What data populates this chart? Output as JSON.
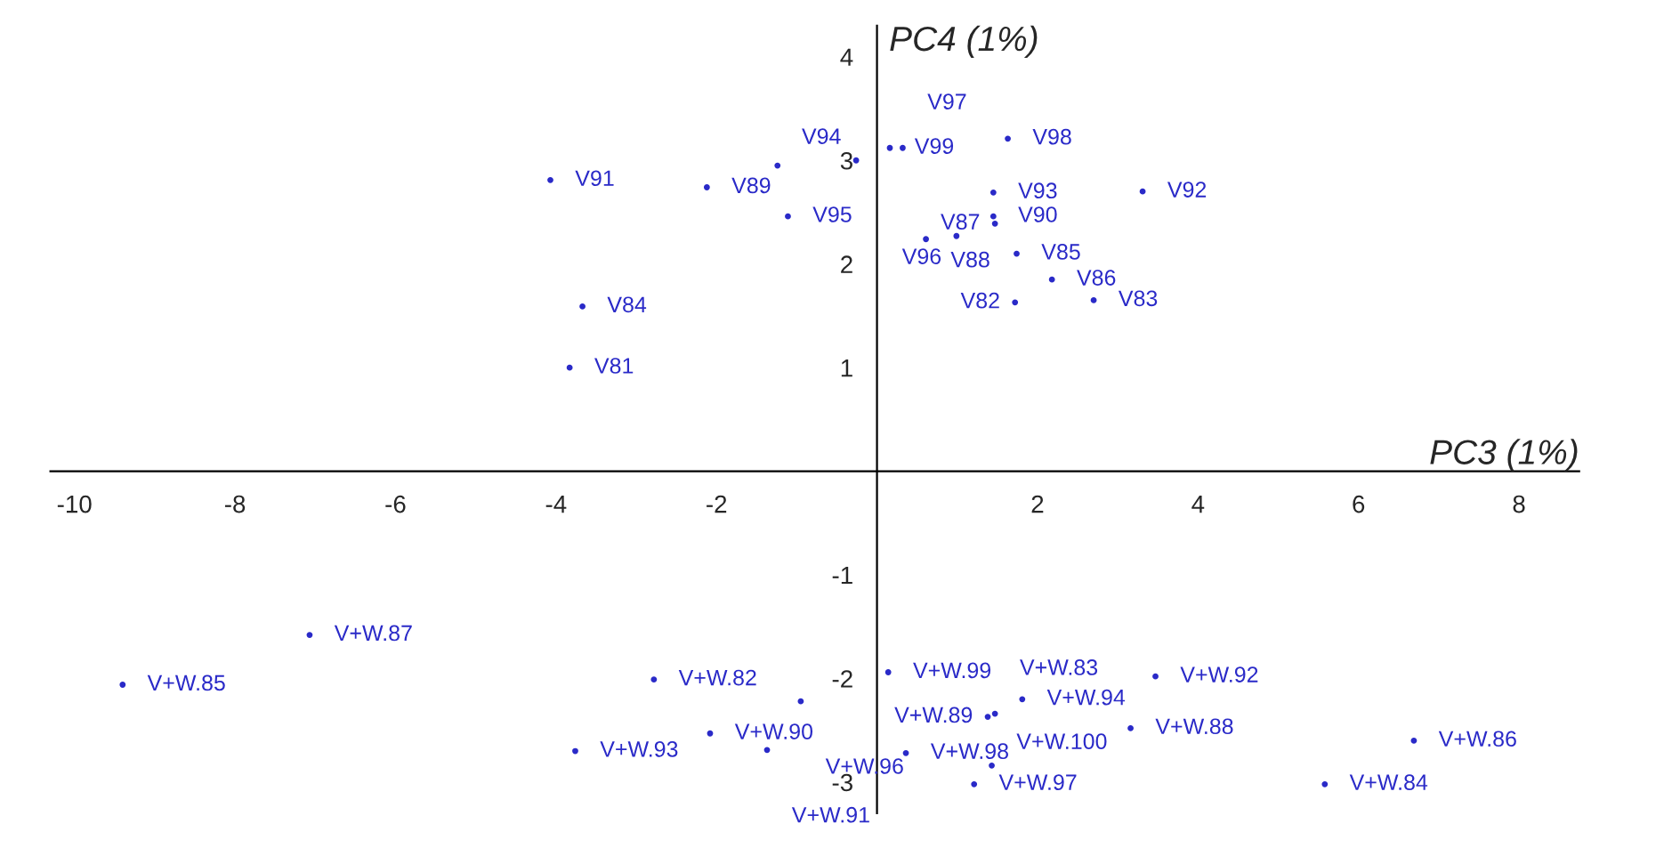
{
  "chart_data": {
    "type": "scatter",
    "xlabel": "PC3 (1%)",
    "ylabel": "PC4 (1%)",
    "xlim": [
      -10.3,
      8.75
    ],
    "ylim": [
      -3.3,
      4.3
    ],
    "xticks": [
      -10,
      -8,
      -6,
      -4,
      -2,
      2,
      4,
      6,
      8
    ],
    "yticks": [
      -3,
      -2,
      -1,
      1,
      2,
      3,
      4
    ],
    "grid": false,
    "legend": false,
    "marker": "circle",
    "series": [
      {
        "color": "#2a2ac8",
        "x": [
          -4.07,
          -2.12,
          -1.11,
          -1.24,
          -0.26,
          0.16,
          0.32,
          1.63,
          1.45,
          3.31,
          1.45,
          1.47,
          0.61,
          0.99,
          1.74,
          2.18,
          1.72,
          2.7,
          -3.67,
          -3.83,
          -7.07,
          -9.4,
          -2.78,
          -3.76,
          -2.08,
          -1.37,
          -0.95,
          0.14,
          0.36,
          1.21,
          1.43,
          1.81,
          1.38,
          1.47,
          3.16,
          3.47,
          6.69,
          5.58
        ],
        "values": [
          2.81,
          2.74,
          2.46,
          2.95,
          3.0,
          3.12,
          3.12,
          3.21,
          2.69,
          2.7,
          2.46,
          2.39,
          2.24,
          2.27,
          2.1,
          1.85,
          1.63,
          1.65,
          1.59,
          1.0,
          -1.58,
          -2.06,
          -2.01,
          -2.7,
          -2.53,
          -2.69,
          -2.22,
          -1.94,
          -2.72,
          -3.02,
          -2.84,
          -2.2,
          -2.37,
          -2.34,
          -2.48,
          -1.98,
          -2.6,
          -3.02
        ]
      }
    ],
    "annotations": [
      {
        "text": "V91",
        "x": -4.07,
        "y": 2.81
      },
      {
        "text": "V89",
        "x": -2.12,
        "y": 2.74
      },
      {
        "text": "V95",
        "x": -1.11,
        "y": 2.46
      },
      {
        "text": "V94",
        "x": -0.26,
        "y": 3.0
      },
      {
        "text": "V99",
        "x": 0.16,
        "y": 3.12
      },
      {
        "text": "V97",
        "x": 0.32,
        "y": 3.12
      },
      {
        "text": "V98",
        "x": 1.63,
        "y": 3.21
      },
      {
        "text": "V93",
        "x": 1.45,
        "y": 2.69
      },
      {
        "text": "V92",
        "x": 3.31,
        "y": 2.7
      },
      {
        "text": "V90",
        "x": 1.45,
        "y": 2.46
      },
      {
        "text": "V87",
        "x": 1.47,
        "y": 2.39
      },
      {
        "text": "V88",
        "x": 0.61,
        "y": 2.24
      },
      {
        "text": "V96",
        "x": 0.99,
        "y": 2.27
      },
      {
        "text": "V85",
        "x": 1.74,
        "y": 2.1
      },
      {
        "text": "V86",
        "x": 2.18,
        "y": 1.85
      },
      {
        "text": "V82",
        "x": 1.72,
        "y": 1.63
      },
      {
        "text": "V83",
        "x": 2.7,
        "y": 1.65
      },
      {
        "text": "V84",
        "x": -3.67,
        "y": 1.59
      },
      {
        "text": "V81",
        "x": -3.83,
        "y": 1.0
      },
      {
        "text": "V+W.87",
        "x": -7.07,
        "y": -1.58
      },
      {
        "text": "V+W.85",
        "x": -9.4,
        "y": -2.06
      },
      {
        "text": "V+W.82",
        "x": -2.78,
        "y": -2.01
      },
      {
        "text": "V+W.93",
        "x": -3.76,
        "y": -2.7
      },
      {
        "text": "V+W.90",
        "x": -2.08,
        "y": -2.53
      },
      {
        "text": "V+W.91",
        "x": -1.37,
        "y": -2.69
      },
      {
        "text": "V+W.96",
        "x": -0.95,
        "y": -2.22
      },
      {
        "text": "V+W.99",
        "x": 0.14,
        "y": -1.94
      },
      {
        "text": "V+W.98",
        "x": 0.36,
        "y": -2.72
      },
      {
        "text": "V+W.97",
        "x": 1.21,
        "y": -3.02
      },
      {
        "text": "V+W.100",
        "x": 1.43,
        "y": -2.84
      },
      {
        "text": "V+W.94",
        "x": 1.81,
        "y": -2.2
      },
      {
        "text": "V+W.89",
        "x": 1.38,
        "y": -2.37
      },
      {
        "text": "V+W.83",
        "x": 1.47,
        "y": -2.34
      },
      {
        "text": "V+W.88",
        "x": 3.16,
        "y": -2.48
      },
      {
        "text": "V+W.92",
        "x": 3.47,
        "y": -1.98
      },
      {
        "text": "V+W.86",
        "x": 6.69,
        "y": -2.6
      },
      {
        "text": "V+W.84",
        "x": 5.58,
        "y": -3.02
      }
    ]
  }
}
